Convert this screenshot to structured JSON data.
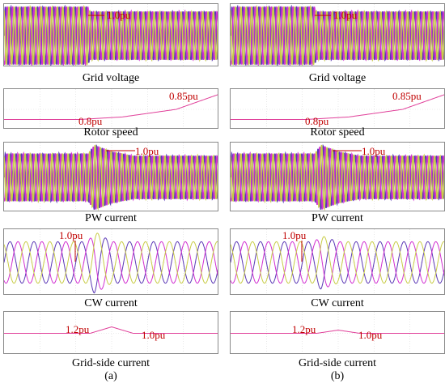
{
  "columns": [
    {
      "key": "a",
      "label": "(a)",
      "panels": {
        "grid_voltage": {
          "caption": "Grid voltage",
          "annotation": "1.0pu"
        },
        "rotor_speed": {
          "caption": "Rotor speed",
          "start_label": "0.8pu",
          "end_label": "0.85pu"
        },
        "pw_current": {
          "caption": "PW current",
          "annotation": "1.0pu"
        },
        "cw_current": {
          "caption": "CW current",
          "annotation": "1.0pu"
        },
        "grid_side_current": {
          "caption": "Grid-side current",
          "label_before": "1.2pu",
          "label_after": "1.0pu"
        }
      }
    },
    {
      "key": "b",
      "label": "(b)",
      "panels": {
        "grid_voltage": {
          "caption": "Grid voltage",
          "annotation": "1.0pu"
        },
        "rotor_speed": {
          "caption": "Rotor speed",
          "start_label": "0.8pu",
          "end_label": "0.85pu"
        },
        "pw_current": {
          "caption": "PW current",
          "annotation": "1.0pu"
        },
        "cw_current": {
          "caption": "CW current",
          "annotation": "1.0pu"
        },
        "grid_side_current": {
          "caption": "Grid-side current",
          "label_before": "1.2pu",
          "label_after": "1.0pu"
        }
      }
    }
  ],
  "colors": {
    "phase_a": "#5a37b5",
    "phase_b": "#d12fd1",
    "phase_c": "#c8cc46",
    "annotation": "#c00000",
    "trace": "#e0409a",
    "frame": "#8a8a8a",
    "grid": "#d9d9d9"
  },
  "chart_data": [
    {
      "type": "line",
      "panel": "a-grid-voltage",
      "series": [
        {
          "values": [
            1.2,
            1.2,
            1.2,
            1.0,
            1.0,
            1.0
          ]
        }
      ],
      "x": [
        0,
        0.2,
        0.39,
        0.4,
        0.7,
        1.0
      ],
      "ylim": [
        -1.3,
        1.3
      ],
      "grid": true
    },
    {
      "type": "line",
      "panel": "a-rotor-speed",
      "series": [
        {
          "values": [
            0.8,
            0.8,
            0.805,
            0.82,
            0.85
          ]
        }
      ],
      "x": [
        0,
        0.35,
        0.55,
        0.8,
        1.0
      ],
      "ylim": [
        0.78,
        0.86
      ],
      "grid": true
    },
    {
      "type": "line",
      "panel": "a-pw-current",
      "series": [
        {
          "values": [
            1.1,
            1.1,
            1.1,
            1.5,
            1.2,
            1.0,
            1.0
          ]
        }
      ],
      "x": [
        0,
        0.2,
        0.39,
        0.42,
        0.5,
        0.6,
        1.0
      ],
      "ylim": [
        -1.6,
        1.6
      ],
      "grid": true
    },
    {
      "type": "line",
      "panel": "a-cw-current",
      "series": [
        {
          "values": [
            1.0,
            1.0,
            1.5,
            1.0,
            1.0
          ]
        }
      ],
      "x": [
        0,
        0.39,
        0.42,
        0.5,
        1.0
      ],
      "ylim": [
        -1.6,
        1.6
      ],
      "grid": true
    },
    {
      "type": "line",
      "panel": "a-grid-side-current",
      "series": [
        {
          "values": [
            0.0,
            0.0,
            0.3,
            0.0,
            0.0
          ]
        }
      ],
      "x": [
        0,
        0.4,
        0.5,
        0.6,
        1.0
      ],
      "ylim": [
        -1.0,
        1.0
      ],
      "grid": true
    },
    {
      "type": "line",
      "panel": "b-grid-voltage",
      "series": [
        {
          "values": [
            1.2,
            1.2,
            1.2,
            1.0,
            1.0,
            1.0
          ]
        }
      ],
      "x": [
        0,
        0.2,
        0.39,
        0.4,
        0.7,
        1.0
      ],
      "ylim": [
        -1.3,
        1.3
      ],
      "grid": true
    },
    {
      "type": "line",
      "panel": "b-rotor-speed",
      "series": [
        {
          "values": [
            0.8,
            0.8,
            0.805,
            0.82,
            0.85
          ]
        }
      ],
      "x": [
        0,
        0.35,
        0.55,
        0.8,
        1.0
      ],
      "ylim": [
        0.78,
        0.86
      ],
      "grid": true
    },
    {
      "type": "line",
      "panel": "b-pw-current",
      "series": [
        {
          "values": [
            1.1,
            1.1,
            1.1,
            1.5,
            1.2,
            1.0,
            1.0
          ]
        }
      ],
      "x": [
        0,
        0.2,
        0.39,
        0.42,
        0.5,
        0.6,
        1.0
      ],
      "ylim": [
        -1.6,
        1.6
      ],
      "grid": true
    },
    {
      "type": "line",
      "panel": "b-cw-current",
      "series": [
        {
          "values": [
            1.0,
            1.0,
            1.3,
            1.0,
            1.0
          ]
        }
      ],
      "x": [
        0,
        0.39,
        0.42,
        0.5,
        1.0
      ],
      "ylim": [
        -1.6,
        1.6
      ],
      "grid": true
    },
    {
      "type": "line",
      "panel": "b-grid-side-current",
      "series": [
        {
          "values": [
            0.0,
            0.0,
            0.15,
            0.0,
            0.0
          ]
        }
      ],
      "x": [
        0,
        0.4,
        0.5,
        0.6,
        1.0
      ],
      "ylim": [
        -1.0,
        1.0
      ],
      "grid": true
    }
  ]
}
